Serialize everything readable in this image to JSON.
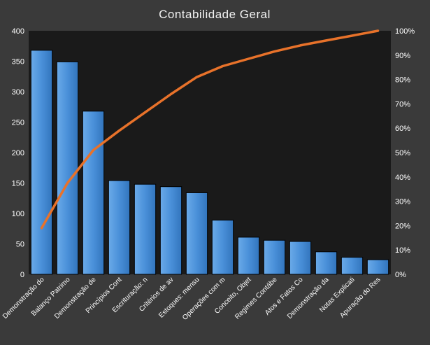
{
  "chart_data": {
    "type": "bar",
    "title": "Contabilidade  Geral",
    "categories": [
      "Demonstração do",
      "Balanço Patrimo",
      "Demonstração de",
      "Princípios Cont",
      "Escrituração: n",
      "Critérios de av",
      "Estoques: mensu",
      "Operações com m",
      "Conceito, Objet",
      "Regimes Contábe",
      "Atos e Fatos Co",
      "Demonstração da",
      "Notas Explicati",
      "Apuração do Res"
    ],
    "series": [
      {
        "type": "bar",
        "axis": "left",
        "values": [
          368,
          349,
          268,
          154,
          148,
          144,
          134,
          89,
          61,
          56,
          54,
          37,
          28,
          24
        ]
      },
      {
        "type": "line",
        "axis": "right",
        "values": [
          0.19,
          0.375,
          0.51,
          0.59,
          0.665,
          0.74,
          0.81,
          0.855,
          0.885,
          0.915,
          0.94,
          0.96,
          0.98,
          1.0
        ]
      }
    ],
    "y_left": {
      "min": 0,
      "max": 400,
      "ticks": [
        "0",
        "50",
        "100",
        "150",
        "200",
        "250",
        "300",
        "350",
        "400"
      ]
    },
    "y_right": {
      "min": 0,
      "max": 1,
      "ticks": [
        "0%",
        "10%",
        "20%",
        "30%",
        "40%",
        "50%",
        "60%",
        "70%",
        "80%",
        "90%",
        "100%"
      ]
    },
    "grid": false,
    "legend": "none",
    "colors": {
      "background": "#3a3a3a",
      "plot_background": "#1a1a1a",
      "bar": "#4a90d9",
      "line": "#e8722a",
      "text": "#ffffff"
    }
  }
}
